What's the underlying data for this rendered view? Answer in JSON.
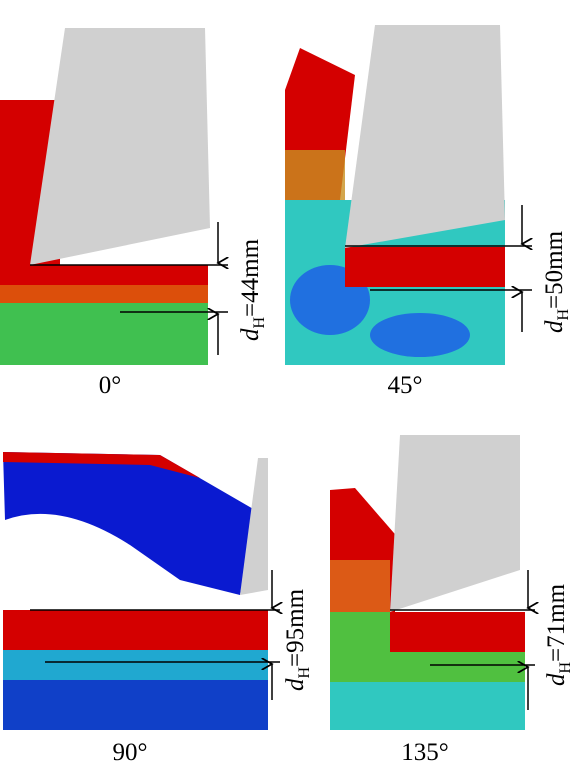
{
  "panels": [
    {
      "angle": "0°",
      "depth": {
        "symbol": "d",
        "subscript": "H",
        "value": "=44mm"
      }
    },
    {
      "angle": "45°",
      "depth": {
        "symbol": "d",
        "subscript": "H",
        "value": "=50mm"
      }
    },
    {
      "angle": "90°",
      "depth": {
        "symbol": "d",
        "subscript": "H",
        "value": "=95mm"
      }
    },
    {
      "angle": "135°",
      "depth": {
        "symbol": "d",
        "subscript": "H",
        "value": "=71mm"
      }
    }
  ]
}
